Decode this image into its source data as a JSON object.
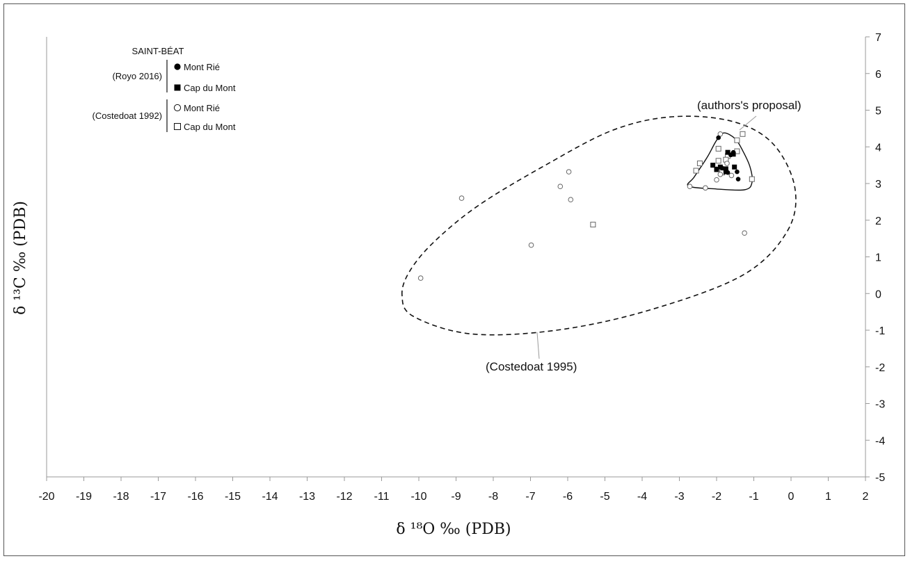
{
  "chart_data": {
    "type": "scatter",
    "title": "",
    "xlabel": "δ ¹⁸O ‰ (PDB)",
    "ylabel": "δ ¹³C ‰ (PDB)",
    "xlim": [
      -20,
      2
    ],
    "ylim": [
      -5,
      7
    ],
    "x_ticks": [
      -20,
      -19,
      -18,
      -17,
      -16,
      -15,
      -14,
      -13,
      -12,
      -11,
      -10,
      -9,
      -8,
      -7,
      -6,
      -5,
      -4,
      -3,
      -2,
      -1,
      0,
      1,
      2
    ],
    "y_ticks": [
      -5,
      -4,
      -3,
      -2,
      -1,
      0,
      1,
      2,
      3,
      4,
      5,
      6,
      7
    ],
    "y_axis_side": "right",
    "grid": false,
    "legend": {
      "position": "top-left",
      "title": "SAINT-BÉAT",
      "groups": [
        {
          "source": "(Royo 2016)",
          "entries": [
            {
              "label": "Mont Rié",
              "marker": "filled-circle"
            },
            {
              "label": "Cap du Mont",
              "marker": "filled-square"
            }
          ]
        },
        {
          "source": "(Costedoat 1992)",
          "entries": [
            {
              "label": "Mont Rié",
              "marker": "open-circle"
            },
            {
              "label": "Cap du Mont",
              "marker": "open-square"
            }
          ]
        }
      ]
    },
    "series": [
      {
        "name": "Mont Rié",
        "source": "(Royo 2016)",
        "marker": "filled-circle",
        "points": [
          [
            -1.95,
            4.25
          ],
          [
            -1.55,
            3.85
          ],
          [
            -1.45,
            3.32
          ],
          [
            -1.42,
            3.12
          ],
          [
            -1.7,
            3.3
          ],
          [
            -2.0,
            3.4
          ],
          [
            -1.62,
            3.78
          ],
          [
            -1.85,
            3.42
          ]
        ]
      },
      {
        "name": "Cap du Mont",
        "source": "(Royo 2016)",
        "marker": "filled-square",
        "points": [
          [
            -2.1,
            3.5
          ],
          [
            -1.9,
            3.45
          ],
          [
            -1.75,
            3.4
          ],
          [
            -1.7,
            3.85
          ],
          [
            -1.55,
            3.8
          ],
          [
            -1.52,
            3.45
          ],
          [
            -2.0,
            3.38
          ],
          [
            -1.75,
            3.32
          ]
        ]
      },
      {
        "name": "Mont Rié",
        "source": "(Costedoat 1992)",
        "marker": "open-circle",
        "points": [
          [
            -9.95,
            0.42
          ],
          [
            -8.85,
            2.6
          ],
          [
            -6.98,
            1.32
          ],
          [
            -6.2,
            2.92
          ],
          [
            -5.97,
            3.32
          ],
          [
            -5.92,
            2.56
          ],
          [
            -1.25,
            1.65
          ],
          [
            -1.9,
            4.35
          ],
          [
            -2.72,
            2.92
          ],
          [
            -2.3,
            2.88
          ],
          [
            -2.0,
            3.1
          ],
          [
            -1.72,
            3.55
          ],
          [
            -1.9,
            3.25
          ],
          [
            -1.6,
            3.22
          ]
        ]
      },
      {
        "name": "Cap du Mont",
        "source": "(Costedoat 1992)",
        "marker": "open-square",
        "points": [
          [
            -5.32,
            1.88
          ],
          [
            -2.55,
            3.35
          ],
          [
            -2.45,
            3.55
          ],
          [
            -1.95,
            3.95
          ],
          [
            -1.95,
            3.62
          ],
          [
            -1.85,
            3.3
          ],
          [
            -1.3,
            4.35
          ],
          [
            -1.45,
            4.18
          ],
          [
            -1.45,
            3.88
          ],
          [
            -1.05,
            3.12
          ],
          [
            -1.7,
            3.75
          ],
          [
            -1.75,
            3.65
          ]
        ]
      }
    ],
    "annotations": [
      {
        "text": "(authors's proposal)",
        "shape": "solid-outline"
      },
      {
        "text": "(Costedoat 1995)",
        "shape": "dashed-ellipse"
      }
    ]
  }
}
